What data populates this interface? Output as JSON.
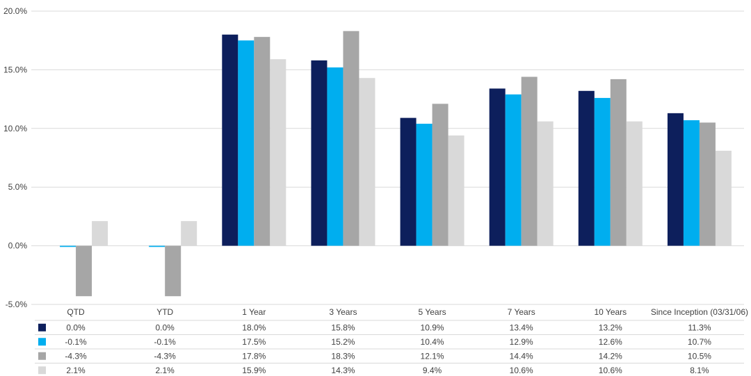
{
  "chart_data": {
    "type": "bar",
    "categories": [
      "QTD",
      "YTD",
      "1 Year",
      "3 Years",
      "5 Years",
      "7 Years",
      "10 Years",
      "Since Inception (03/31/06)"
    ],
    "series": [
      {
        "color": "#0d1f5c",
        "values": [
          0.0,
          0.0,
          18.0,
          15.8,
          10.9,
          13.4,
          13.2,
          11.3
        ],
        "labels": [
          "0.0%",
          "0.0%",
          "18.0%",
          "15.8%",
          "10.9%",
          "13.4%",
          "13.2%",
          "11.3%"
        ]
      },
      {
        "color": "#00aeef",
        "values": [
          -0.1,
          -0.1,
          17.5,
          15.2,
          10.4,
          12.9,
          12.6,
          10.7
        ],
        "labels": [
          "-0.1%",
          "-0.1%",
          "17.5%",
          "15.2%",
          "10.4%",
          "12.9%",
          "12.6%",
          "10.7%"
        ]
      },
      {
        "color": "#a6a6a6",
        "values": [
          -4.3,
          -4.3,
          17.8,
          18.3,
          12.1,
          14.4,
          14.2,
          10.5
        ],
        "labels": [
          "-4.3%",
          "-4.3%",
          "17.8%",
          "18.3%",
          "12.1%",
          "14.4%",
          "14.2%",
          "10.5%"
        ]
      },
      {
        "color": "#d9d9d9",
        "values": [
          2.1,
          2.1,
          15.9,
          14.3,
          9.4,
          10.6,
          10.6,
          8.1
        ],
        "labels": [
          "2.1%",
          "2.1%",
          "15.9%",
          "14.3%",
          "9.4%",
          "10.6%",
          "10.6%",
          "8.1%"
        ]
      }
    ],
    "ylim": [
      -5,
      20
    ],
    "yticks": [
      -5,
      0,
      5,
      10,
      15,
      20
    ],
    "ytick_labels": [
      "-5.0%",
      "0.0%",
      "5.0%",
      "10.0%",
      "15.0%",
      "20.0%"
    ],
    "grid": true,
    "data_table": true
  }
}
